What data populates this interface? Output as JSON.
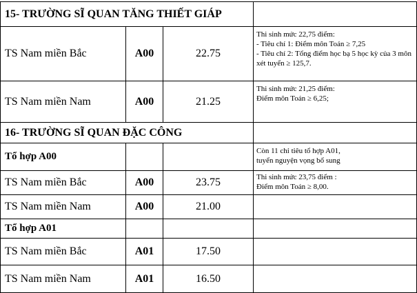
{
  "sections": [
    {
      "title": "15- TRƯỜNG SĨ QUAN TĂNG THIẾT GIÁP",
      "rows": [
        {
          "name": "TS Nam miền Bắc",
          "combo": "A00",
          "score": "22.75",
          "note": [
            "Thi sinh mức 22,75 điểm:",
            "- Tiêu chí 1: Điểm môn Toán ≥ 7,25",
            "- Tiêu chí 2: Tổng điểm học bạ 5 học kỳ của 3 môn xét tuyển ≥ 125,7."
          ]
        },
        {
          "name": "TS Nam miền Nam",
          "combo": "A00",
          "score": "21.25",
          "note": [
            "Thi sinh mức 21,25 điểm:",
            "Điểm môn Toán ≥ 6,25;"
          ]
        }
      ]
    },
    {
      "title": "16- TRƯỜNG SĨ QUAN ĐẶC CÔNG",
      "groups": [
        {
          "label": "Tổ hợp A00",
          "note": [
            "Còn 11 chỉ tiêu tổ hợp A01,",
            "tuyển nguyện vọng bổ sung"
          ],
          "rows": [
            {
              "name": "TS Nam miền Bắc",
              "combo": "A00",
              "score": "23.75",
              "note": [
                "Thi sinh mức 23,75 điểm :",
                "Điểm môn Toán ≥ 8,00."
              ]
            },
            {
              "name": "TS Nam miền Nam",
              "combo": "A00",
              "score": "21.00"
            }
          ]
        },
        {
          "label": "Tổ hợp A01",
          "rows": [
            {
              "name": "TS Nam miền Bắc",
              "combo": "A01",
              "score": "17.50"
            },
            {
              "name": "TS Nam miền Nam",
              "combo": "A01",
              "score": "16.50"
            }
          ]
        }
      ]
    }
  ]
}
